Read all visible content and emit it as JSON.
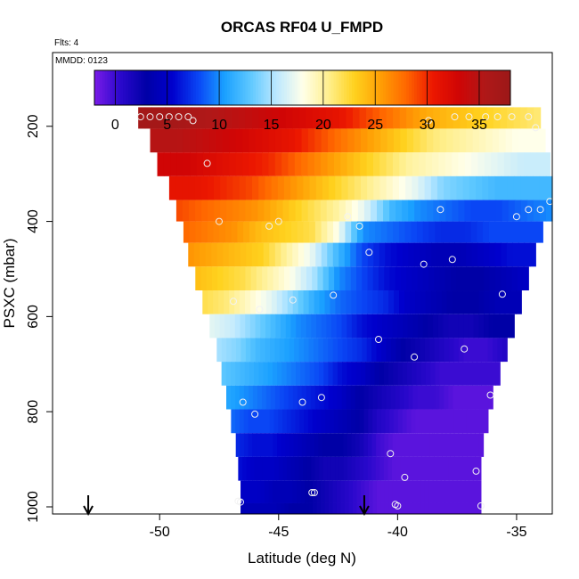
{
  "chart_data": {
    "type": "heatmap",
    "title": "ORCAS RF04 U_FMPD",
    "note_flts": "Flts: 4",
    "note_mmdd": "MMDD: 0123",
    "xlabel": "Latitude (deg N)",
    "ylabel": "PSXC (mbar)",
    "xlim": [
      -54.5,
      -33.5
    ],
    "ylim": [
      1015,
      45
    ],
    "y_reversed": true,
    "x_ticks": [
      -50,
      -45,
      -40,
      -35
    ],
    "x_tick_labels": [
      "-50",
      "-45",
      "-40",
      "-35"
    ],
    "y_ticks": [
      200,
      400,
      600,
      800,
      1000
    ],
    "y_tick_labels": [
      "200",
      "400",
      "600",
      "800",
      "1000"
    ],
    "colorbar": {
      "range": [
        -2,
        38
      ],
      "ticks": [
        0,
        5,
        10,
        15,
        20,
        25,
        30,
        35
      ],
      "tick_labels": [
        "0",
        "5",
        "10",
        "15",
        "20",
        "25",
        "30",
        "35"
      ],
      "colors": [
        "#7a1ce8",
        "#2a08cc",
        "#0000a6",
        "#0000cd",
        "#0a46f5",
        "#1aa0ff",
        "#5ec8ff",
        "#bce8ff",
        "#ffffea",
        "#ffef8e",
        "#ffd21e",
        "#ff9f05",
        "#ff6700",
        "#ec1800",
        "#d00505",
        "#b01818",
        "#9c1818"
      ]
    },
    "layers": [
      {
        "p": 180,
        "lat_min": -50.9,
        "lat_max": -34.0,
        "u": [
          37,
          37,
          36,
          35,
          34,
          33,
          32,
          31,
          29,
          27,
          25,
          24,
          23,
          22,
          21
        ]
      },
      {
        "p": 230,
        "lat_min": -50.4,
        "lat_max": -33.8,
        "u": [
          35,
          35,
          34,
          33,
          32,
          31,
          29,
          27,
          25,
          23,
          21,
          20,
          19,
          18,
          18
        ]
      },
      {
        "p": 280,
        "lat_min": -50.1,
        "lat_max": -33.6,
        "u": [
          33,
          33,
          32,
          31,
          30,
          28,
          26,
          24,
          22,
          20,
          19,
          18,
          17,
          16,
          16
        ]
      },
      {
        "p": 330,
        "lat_min": -49.6,
        "lat_max": -33.5,
        "u": [
          31,
          31,
          30,
          29,
          27,
          25,
          23,
          21,
          19,
          17,
          14,
          13,
          12,
          12,
          12
        ]
      },
      {
        "p": 380,
        "lat_min": -49.3,
        "lat_max": -33.5,
        "u": [
          29,
          28,
          27,
          26,
          24,
          22,
          20,
          17,
          12,
          10,
          9,
          8,
          8,
          9,
          10
        ]
      },
      {
        "p": 420,
        "lat_min": -49.0,
        "lat_max": -33.9,
        "u": [
          28,
          27,
          26,
          24,
          23,
          22,
          18,
          10,
          9,
          8,
          7,
          7,
          8,
          8,
          8
        ]
      },
      {
        "p": 470,
        "lat_min": -48.8,
        "lat_max": -34.2,
        "u": [
          26,
          25,
          24,
          23,
          20,
          17,
          12,
          8,
          6,
          5,
          4,
          4,
          5,
          6,
          6
        ]
      },
      {
        "p": 520,
        "lat_min": -48.5,
        "lat_max": -34.5,
        "u": [
          24,
          23,
          22,
          20,
          18,
          15,
          10,
          8,
          6,
          5,
          4,
          3,
          3,
          4,
          5
        ]
      },
      {
        "p": 570,
        "lat_min": -48.2,
        "lat_max": -34.8,
        "u": [
          22,
          21,
          19,
          17,
          14,
          11,
          9,
          8,
          7,
          5,
          4,
          3,
          3,
          4,
          4
        ]
      },
      {
        "p": 620,
        "lat_min": -47.9,
        "lat_max": -35.1,
        "u": [
          17,
          16,
          14,
          12,
          10,
          9,
          8,
          6,
          5,
          4,
          3,
          2,
          2,
          3,
          3
        ]
      },
      {
        "p": 670,
        "lat_min": -47.6,
        "lat_max": -35.4,
        "u": [
          15,
          14,
          12,
          11,
          10,
          9,
          8,
          7,
          5,
          3,
          2,
          1,
          0,
          0,
          1
        ]
      },
      {
        "p": 720,
        "lat_min": -47.4,
        "lat_max": -35.7,
        "u": [
          13,
          12,
          11,
          10,
          9,
          8,
          6,
          5,
          3,
          2,
          1,
          0,
          0,
          0,
          0
        ]
      },
      {
        "p": 770,
        "lat_min": -47.2,
        "lat_max": -36.0,
        "u": [
          11,
          10,
          9,
          8,
          7,
          6,
          5,
          3,
          2,
          1,
          0,
          0,
          -1,
          -1,
          -1
        ]
      },
      {
        "p": 820,
        "lat_min": -47.0,
        "lat_max": -36.2,
        "u": [
          9,
          8,
          8,
          7,
          6,
          5,
          4,
          3,
          1,
          0,
          -1,
          -1,
          -1,
          -1,
          -1
        ]
      },
      {
        "p": 870,
        "lat_min": -46.8,
        "lat_max": -36.4,
        "u": [
          7,
          6,
          6,
          5,
          4,
          3,
          3,
          2,
          0,
          -1,
          -1,
          -1,
          -1,
          -1,
          -1
        ]
      },
      {
        "p": 920,
        "lat_min": -46.7,
        "lat_max": -36.5,
        "u": [
          6,
          5,
          5,
          4,
          3,
          2,
          2,
          1,
          0,
          -1,
          -1,
          -1,
          -1,
          -1,
          -1
        ]
      },
      {
        "p": 970,
        "lat_min": -46.6,
        "lat_max": -36.5,
        "u": [
          5,
          5,
          4,
          4,
          3,
          2,
          1,
          0,
          -1,
          -1,
          -1,
          -1,
          -1,
          -1,
          -1
        ]
      },
      {
        "p": 1015,
        "lat_min": -46.6,
        "lat_max": -36.5,
        "u": [
          4,
          4,
          4,
          3,
          3,
          2,
          1,
          0,
          -1,
          -1,
          -1,
          -1,
          -1,
          -1,
          -1
        ]
      }
    ],
    "points": [
      {
        "lat": -50.8,
        "p": 180
      },
      {
        "lat": -50.4,
        "p": 180
      },
      {
        "lat": -50.0,
        "p": 180
      },
      {
        "lat": -49.6,
        "p": 180
      },
      {
        "lat": -49.2,
        "p": 180
      },
      {
        "lat": -48.8,
        "p": 180
      },
      {
        "lat": -48.6,
        "p": 188
      },
      {
        "lat": -48.0,
        "p": 278
      },
      {
        "lat": -47.5,
        "p": 400
      },
      {
        "lat": -46.9,
        "p": 568
      },
      {
        "lat": -46.7,
        "p": 988
      },
      {
        "lat": -46.6,
        "p": 990
      },
      {
        "lat": -46.5,
        "p": 780
      },
      {
        "lat": -46.0,
        "p": 805
      },
      {
        "lat": -45.8,
        "p": 585
      },
      {
        "lat": -45.4,
        "p": 410
      },
      {
        "lat": -45.0,
        "p": 400
      },
      {
        "lat": -44.4,
        "p": 565
      },
      {
        "lat": -44.0,
        "p": 780
      },
      {
        "lat": -43.6,
        "p": 970
      },
      {
        "lat": -43.5,
        "p": 970
      },
      {
        "lat": -43.2,
        "p": 770
      },
      {
        "lat": -42.7,
        "p": 555
      },
      {
        "lat": -42.1,
        "p": 390
      },
      {
        "lat": -41.6,
        "p": 410
      },
      {
        "lat": -41.2,
        "p": 465
      },
      {
        "lat": -40.8,
        "p": 648
      },
      {
        "lat": -40.3,
        "p": 888
      },
      {
        "lat": -40.1,
        "p": 995
      },
      {
        "lat": -40.0,
        "p": 998
      },
      {
        "lat": -39.7,
        "p": 938
      },
      {
        "lat": -39.3,
        "p": 685
      },
      {
        "lat": -38.9,
        "p": 490
      },
      {
        "lat": -38.7,
        "p": 188
      },
      {
        "lat": -38.2,
        "p": 375
      },
      {
        "lat": -37.7,
        "p": 480
      },
      {
        "lat": -37.6,
        "p": 180
      },
      {
        "lat": -37.2,
        "p": 668
      },
      {
        "lat": -37.0,
        "p": 180
      },
      {
        "lat": -36.7,
        "p": 925
      },
      {
        "lat": -36.5,
        "p": 998
      },
      {
        "lat": -36.3,
        "p": 180
      },
      {
        "lat": -36.1,
        "p": 765
      },
      {
        "lat": -35.8,
        "p": 180
      },
      {
        "lat": -35.6,
        "p": 553
      },
      {
        "lat": -35.2,
        "p": 180
      },
      {
        "lat": -35.0,
        "p": 390
      },
      {
        "lat": -34.5,
        "p": 375
      },
      {
        "lat": -34.5,
        "p": 180
      },
      {
        "lat": -34.2,
        "p": 203
      },
      {
        "lat": -34.0,
        "p": 375
      },
      {
        "lat": -33.6,
        "p": 358
      }
    ],
    "arrows": [
      {
        "lat": -53.0
      },
      {
        "lat": -41.4
      }
    ]
  }
}
